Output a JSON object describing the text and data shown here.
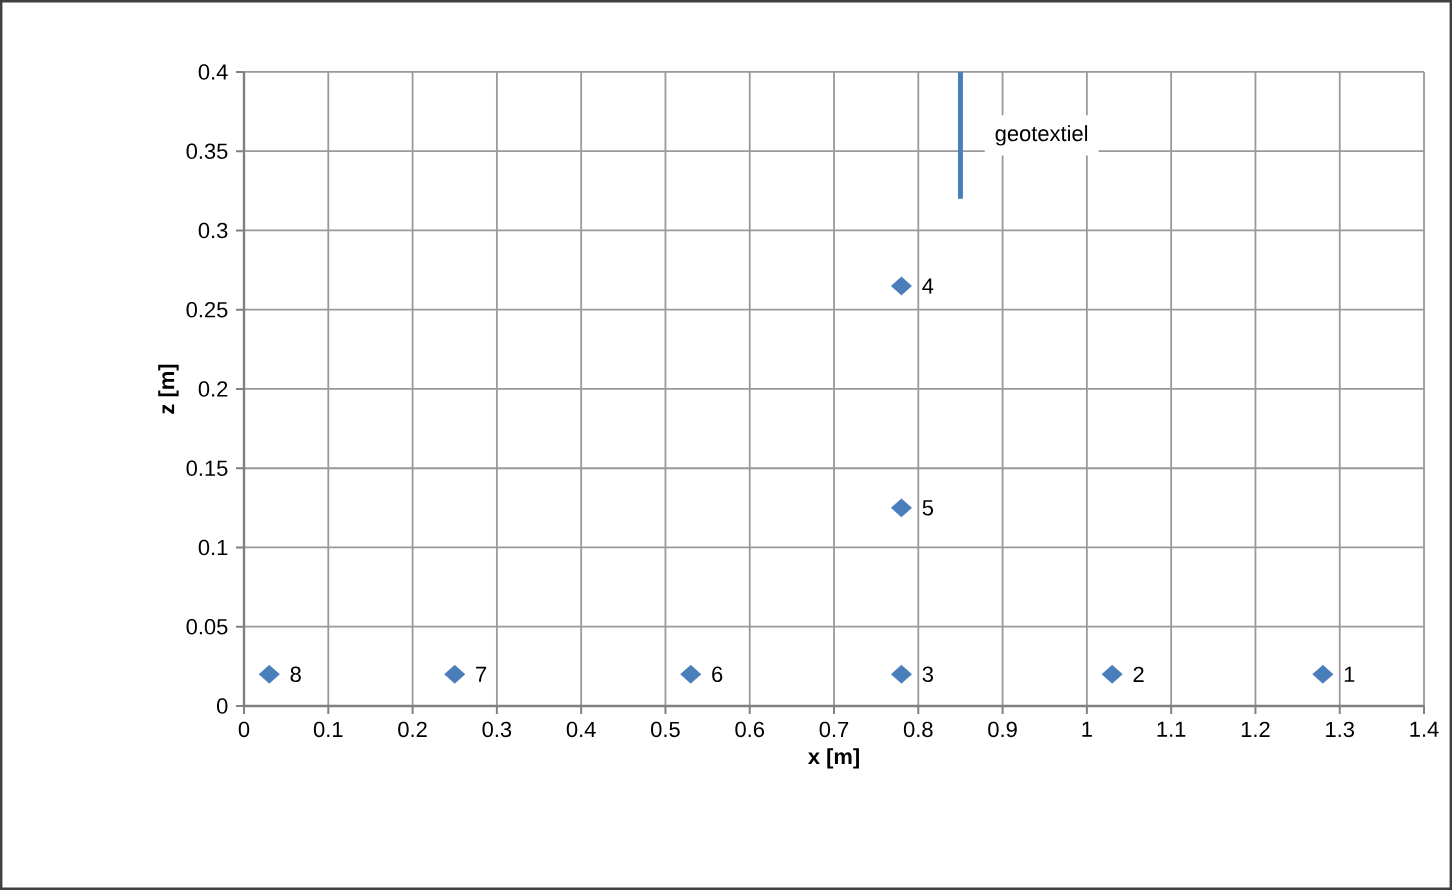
{
  "chart_data": {
    "type": "scatter",
    "xlabel": "x [m]",
    "ylabel": "z [m]",
    "xlim": [
      0,
      1.4
    ],
    "ylim": [
      0,
      0.4
    ],
    "xticks": [
      0,
      0.1,
      0.2,
      0.3,
      0.4,
      0.5,
      0.6,
      0.7,
      0.8,
      0.9,
      1,
      1.1,
      1.2,
      1.3,
      1.4
    ],
    "yticks": [
      0,
      0.05,
      0.1,
      0.15,
      0.2,
      0.25,
      0.3,
      0.35,
      0.4
    ],
    "grid": true,
    "series": [
      {
        "type": "scatter",
        "marker": "diamond",
        "color": "#4a7ebb",
        "x": [
          1.28,
          1.03,
          0.78,
          0.78,
          0.78,
          0.53,
          0.25,
          0.03
        ],
        "values": [
          0.02,
          0.02,
          0.02,
          0.265,
          0.125,
          0.02,
          0.02,
          0.02
        ]
      },
      {
        "type": "line",
        "marker": "none",
        "name": "geotextiel",
        "color": "#4a7ebb",
        "x": [
          0.85,
          0.85
        ],
        "values": [
          0.32,
          0.4
        ]
      }
    ],
    "annotations": [
      {
        "text": "1",
        "x": 1.28,
        "y": 0.02
      },
      {
        "text": "2",
        "x": 1.03,
        "y": 0.02
      },
      {
        "text": "3",
        "x": 0.78,
        "y": 0.02
      },
      {
        "text": "4",
        "x": 0.78,
        "y": 0.265
      },
      {
        "text": "5",
        "x": 0.78,
        "y": 0.125
      },
      {
        "text": "6",
        "x": 0.53,
        "y": 0.02
      },
      {
        "text": "7",
        "x": 0.25,
        "y": 0.02
      },
      {
        "text": "8",
        "x": 0.03,
        "y": 0.02
      }
    ]
  }
}
